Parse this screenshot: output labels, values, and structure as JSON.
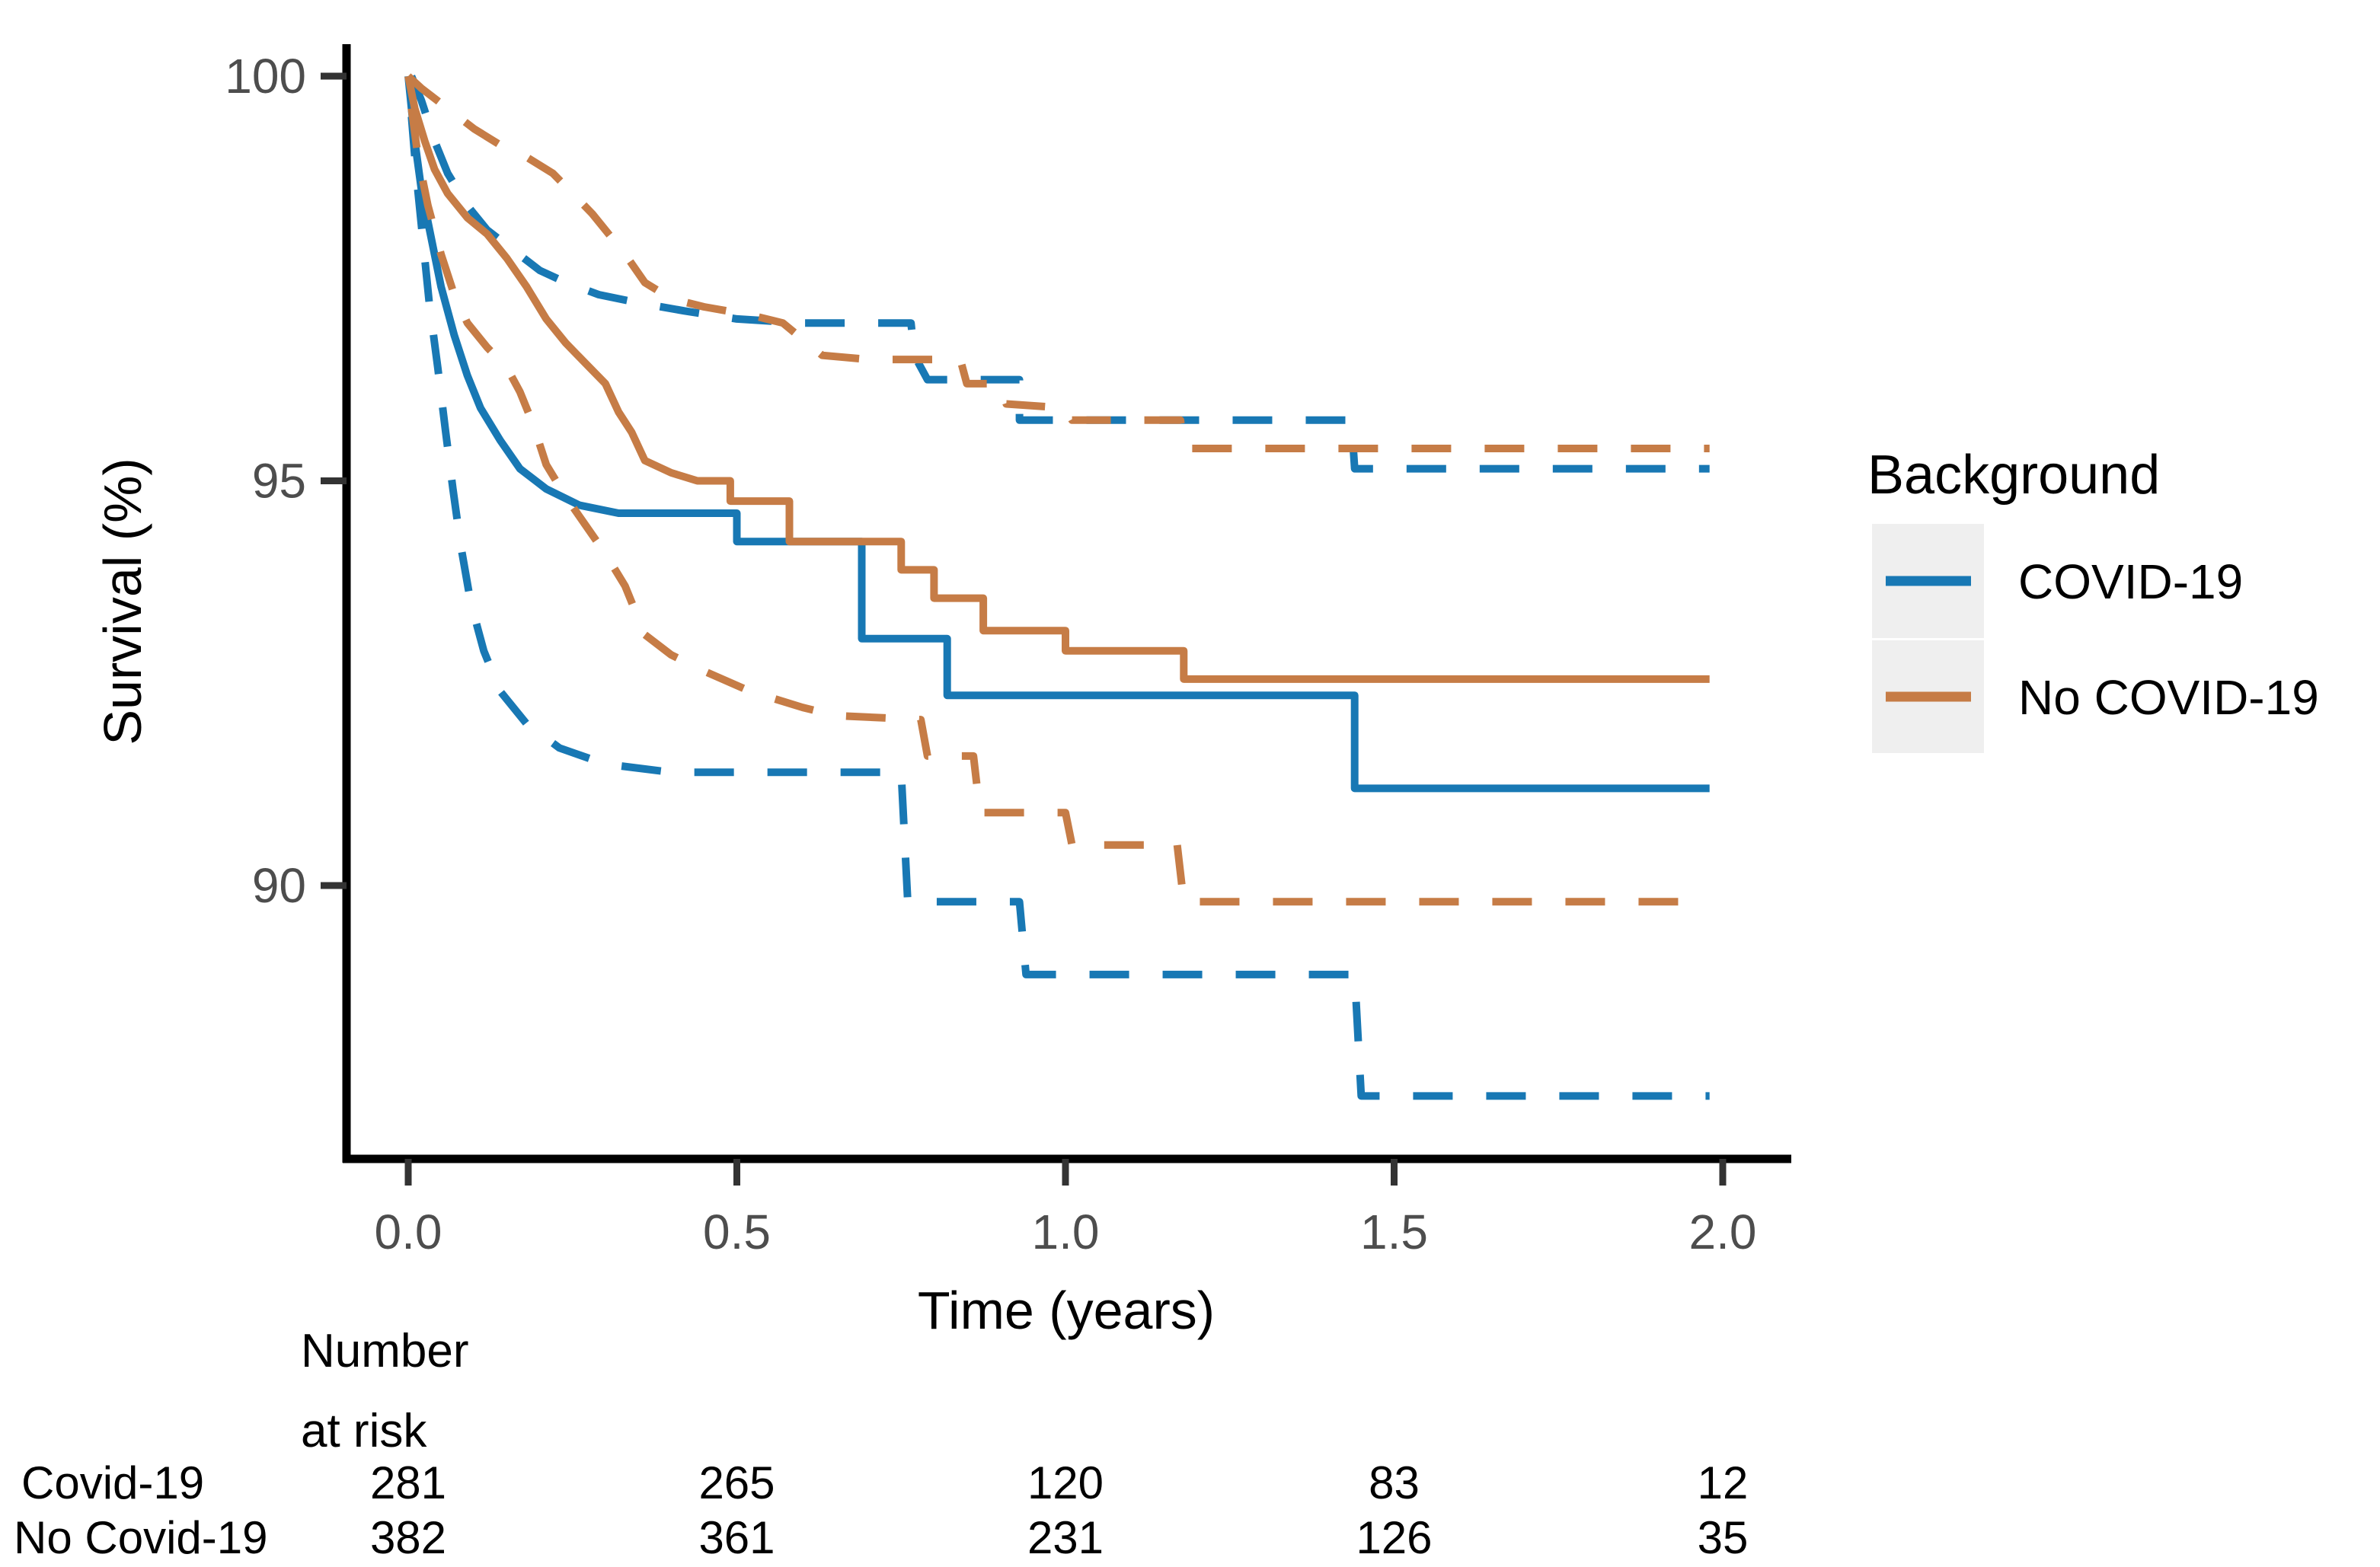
{
  "chart_data": {
    "type": "line",
    "subtype": "kaplan-meier-survival",
    "title": "",
    "xlabel": "Time (years)",
    "ylabel": "Survival (%)",
    "xlim": [
      -0.09,
      2.1
    ],
    "ylim": [
      86.6,
      100.4
    ],
    "x_ticks": [
      "0.0",
      "0.5",
      "1.0",
      "1.5",
      "2.0"
    ],
    "x_tick_values": [
      0.0,
      0.5,
      1.0,
      1.5,
      2.0
    ],
    "y_ticks": [
      "100",
      "95",
      "90"
    ],
    "y_tick_values": [
      100,
      95,
      90
    ],
    "grid": false,
    "legend_position": "right",
    "legend_title": "Background",
    "series": [
      {
        "name": "COVID-19",
        "role": "estimate",
        "style": "solid",
        "color": "#1878B4",
        "points": [
          [
            0,
            100
          ],
          [
            0.01,
            99.2
          ],
          [
            0.02,
            98.6
          ],
          [
            0.035,
            98.0
          ],
          [
            0.05,
            97.4
          ],
          [
            0.07,
            96.8
          ],
          [
            0.09,
            96.3
          ],
          [
            0.11,
            95.9
          ],
          [
            0.14,
            95.5
          ],
          [
            0.17,
            95.15
          ],
          [
            0.21,
            94.9
          ],
          [
            0.26,
            94.7
          ],
          [
            0.32,
            94.6
          ],
          [
            0.5,
            94.6
          ],
          [
            0.5,
            94.25
          ],
          [
            0.69,
            94.25
          ],
          [
            0.69,
            93.05
          ],
          [
            0.82,
            93.05
          ],
          [
            0.82,
            92.35
          ],
          [
            1.44,
            92.35
          ],
          [
            1.44,
            91.2
          ],
          [
            1.98,
            91.2
          ]
        ]
      },
      {
        "name": "COVID-19 upper 95% CI",
        "role": "ci-upper",
        "style": "dashed",
        "color": "#1878B4",
        "points": [
          [
            0.005,
            100
          ],
          [
            0.02,
            99.7
          ],
          [
            0.04,
            99.2
          ],
          [
            0.06,
            98.8
          ],
          [
            0.09,
            98.4
          ],
          [
            0.12,
            98.1
          ],
          [
            0.16,
            97.85
          ],
          [
            0.2,
            97.6
          ],
          [
            0.24,
            97.45
          ],
          [
            0.29,
            97.3
          ],
          [
            0.35,
            97.2
          ],
          [
            0.42,
            97.1
          ],
          [
            0.5,
            97.0
          ],
          [
            0.6,
            96.95
          ],
          [
            0.765,
            96.95
          ],
          [
            0.77,
            96.55
          ],
          [
            0.79,
            96.25
          ],
          [
            0.93,
            96.25
          ],
          [
            0.93,
            95.75
          ],
          [
            1.435,
            95.75
          ],
          [
            1.44,
            95.15
          ],
          [
            1.98,
            95.15
          ]
        ]
      },
      {
        "name": "COVID-19 lower 95% CI",
        "role": "ci-lower",
        "style": "dashed",
        "color": "#1878B4",
        "points": [
          [
            0.005,
            99.5
          ],
          [
            0.012,
            98.8
          ],
          [
            0.022,
            98.0
          ],
          [
            0.032,
            97.2
          ],
          [
            0.045,
            96.4
          ],
          [
            0.057,
            95.6
          ],
          [
            0.068,
            94.9
          ],
          [
            0.08,
            94.2
          ],
          [
            0.095,
            93.5
          ],
          [
            0.115,
            92.9
          ],
          [
            0.14,
            92.4
          ],
          [
            0.18,
            92.0
          ],
          [
            0.23,
            91.7
          ],
          [
            0.3,
            91.5
          ],
          [
            0.4,
            91.4
          ],
          [
            0.75,
            91.4
          ],
          [
            0.76,
            89.8
          ],
          [
            0.93,
            89.8
          ],
          [
            0.94,
            88.9
          ],
          [
            1.44,
            88.9
          ],
          [
            1.45,
            87.4
          ],
          [
            1.98,
            87.4
          ]
        ]
      },
      {
        "name": "No COVID-19",
        "role": "estimate",
        "style": "solid",
        "color": "#C67C46",
        "points": [
          [
            0,
            100
          ],
          [
            0.01,
            99.6
          ],
          [
            0.025,
            99.2
          ],
          [
            0.04,
            98.85
          ],
          [
            0.06,
            98.55
          ],
          [
            0.09,
            98.25
          ],
          [
            0.12,
            98.05
          ],
          [
            0.15,
            97.75
          ],
          [
            0.18,
            97.4
          ],
          [
            0.21,
            97.0
          ],
          [
            0.24,
            96.7
          ],
          [
            0.27,
            96.45
          ],
          [
            0.3,
            96.2
          ],
          [
            0.32,
            95.85
          ],
          [
            0.34,
            95.6
          ],
          [
            0.36,
            95.25
          ],
          [
            0.4,
            95.1
          ],
          [
            0.44,
            95.0
          ],
          [
            0.49,
            95.0
          ],
          [
            0.49,
            94.75
          ],
          [
            0.58,
            94.75
          ],
          [
            0.58,
            94.25
          ],
          [
            0.75,
            94.25
          ],
          [
            0.75,
            93.9
          ],
          [
            0.8,
            93.9
          ],
          [
            0.8,
            93.55
          ],
          [
            0.875,
            93.55
          ],
          [
            0.875,
            93.15
          ],
          [
            1.0,
            93.15
          ],
          [
            1.0,
            92.9
          ],
          [
            1.18,
            92.9
          ],
          [
            1.18,
            92.55
          ],
          [
            1.98,
            92.55
          ]
        ]
      },
      {
        "name": "No COVID-19 upper 95% CI",
        "role": "ci-upper",
        "style": "dashed",
        "color": "#C67C46",
        "points": [
          [
            0,
            100
          ],
          [
            0.02,
            99.85
          ],
          [
            0.06,
            99.6
          ],
          [
            0.1,
            99.35
          ],
          [
            0.14,
            99.15
          ],
          [
            0.18,
            99.0
          ],
          [
            0.22,
            98.8
          ],
          [
            0.25,
            98.55
          ],
          [
            0.28,
            98.3
          ],
          [
            0.31,
            98.0
          ],
          [
            0.33,
            97.8
          ],
          [
            0.36,
            97.45
          ],
          [
            0.4,
            97.25
          ],
          [
            0.45,
            97.15
          ],
          [
            0.52,
            97.05
          ],
          [
            0.57,
            96.95
          ],
          [
            0.6,
            96.75
          ],
          [
            0.63,
            96.55
          ],
          [
            0.7,
            96.5
          ],
          [
            0.84,
            96.5
          ],
          [
            0.85,
            96.2
          ],
          [
            0.9,
            96.2
          ],
          [
            0.91,
            95.95
          ],
          [
            1.0,
            95.9
          ],
          [
            1.01,
            95.75
          ],
          [
            1.175,
            95.75
          ],
          [
            1.18,
            95.4
          ],
          [
            1.98,
            95.4
          ]
        ]
      },
      {
        "name": "No COVID-19 lower 95% CI",
        "role": "ci-lower",
        "style": "dashed",
        "color": "#C67C46",
        "points": [
          [
            0.005,
            99.6
          ],
          [
            0.015,
            99.0
          ],
          [
            0.03,
            98.4
          ],
          [
            0.05,
            97.8
          ],
          [
            0.07,
            97.3
          ],
          [
            0.09,
            96.95
          ],
          [
            0.12,
            96.65
          ],
          [
            0.15,
            96.4
          ],
          [
            0.17,
            96.1
          ],
          [
            0.19,
            95.7
          ],
          [
            0.21,
            95.2
          ],
          [
            0.24,
            94.8
          ],
          [
            0.27,
            94.45
          ],
          [
            0.3,
            94.1
          ],
          [
            0.33,
            93.7
          ],
          [
            0.36,
            93.1
          ],
          [
            0.4,
            92.85
          ],
          [
            0.45,
            92.65
          ],
          [
            0.52,
            92.4
          ],
          [
            0.6,
            92.2
          ],
          [
            0.65,
            92.1
          ],
          [
            0.78,
            92.05
          ],
          [
            0.79,
            91.6
          ],
          [
            0.86,
            91.6
          ],
          [
            0.87,
            90.9
          ],
          [
            1.0,
            90.9
          ],
          [
            1.01,
            90.5
          ],
          [
            1.17,
            90.5
          ],
          [
            1.18,
            89.8
          ],
          [
            1.98,
            89.8
          ]
        ]
      }
    ],
    "risk_table": {
      "header_line1": "Number",
      "header_line2": "at risk",
      "time_points": [
        0.0,
        0.5,
        1.0,
        1.5,
        2.0
      ],
      "rows": [
        {
          "label": "Covid-19",
          "values": [
            "281",
            "265",
            "120",
            "83",
            "12"
          ]
        },
        {
          "label": "No Covid-19",
          "values": [
            "382",
            "361",
            "231",
            "126",
            "35"
          ]
        }
      ]
    }
  },
  "legend": {
    "title": "Background",
    "items": [
      {
        "label": "COVID-19",
        "color": "#1878B4"
      },
      {
        "label": "No COVID-19",
        "color": "#C67C46"
      }
    ],
    "key_background": "#EFEFEF"
  },
  "colors": {
    "covid": "#1878B4",
    "no_covid": "#C67C46",
    "axis": "#000000",
    "tick_text": "#4d4d4d",
    "background": "#ffffff"
  }
}
